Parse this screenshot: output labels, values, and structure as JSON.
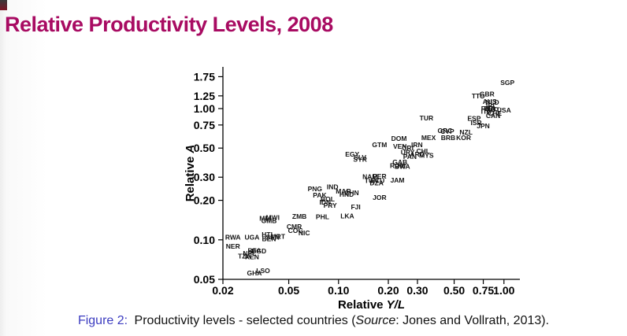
{
  "slide": {
    "title": "Relative Productivity Levels, 2008",
    "title_color": "#a80b62",
    "background_color": "#ffffff",
    "corner_accent_color": "#7a1525"
  },
  "caption": {
    "label": "Figure 2:",
    "label_color": "#3c3cc0",
    "text_before_source": " Productivity levels - selected countries (",
    "source_word": "Source",
    "text_after_source": ": Jones and Vollrath, 2013)."
  },
  "chart_data": {
    "type": "scatter",
    "marker": "country-code-text",
    "title": "",
    "xlabel": "Relative Y/L",
    "xlabel_prefix": "Relative ",
    "xlabel_var": "Y/L",
    "ylabel": "Relative A",
    "ylabel_prefix": "Relative ",
    "ylabel_var": "A",
    "x_scale": "log",
    "y_scale": "log",
    "xlim": [
      0.018,
      1.35
    ],
    "ylim": [
      0.045,
      1.9
    ],
    "grid": false,
    "legend": "none",
    "x_ticks": [
      0.02,
      0.05,
      0.1,
      0.2,
      0.3,
      0.5,
      0.75,
      1.0
    ],
    "x_tick_labels": [
      "0.02",
      "0.05",
      "0.10",
      "0.20",
      "0.30",
      "0.50",
      "0.75",
      "1.00"
    ],
    "y_ticks": [
      0.05,
      0.1,
      0.2,
      0.3,
      0.5,
      0.75,
      1.0,
      1.25,
      1.75
    ],
    "y_tick_labels": [
      "0.05",
      "0.10",
      "0.20",
      "0.30",
      "0.50",
      "0.75",
      "1.00",
      "1.25",
      "1.75"
    ],
    "points": [
      {
        "label": "RWA",
        "x": 0.023,
        "y": 0.105
      },
      {
        "label": "NER",
        "x": 0.023,
        "y": 0.089
      },
      {
        "label": "UGA",
        "x": 0.03,
        "y": 0.105
      },
      {
        "label": "TZA",
        "x": 0.027,
        "y": 0.075
      },
      {
        "label": "KEN",
        "x": 0.03,
        "y": 0.074
      },
      {
        "label": "NPL",
        "x": 0.029,
        "y": 0.079
      },
      {
        "label": "BFA",
        "x": 0.031,
        "y": 0.083
      },
      {
        "label": "BGD",
        "x": 0.033,
        "y": 0.082
      },
      {
        "label": "GHA",
        "x": 0.031,
        "y": 0.056
      },
      {
        "label": "LSO",
        "x": 0.035,
        "y": 0.058
      },
      {
        "label": "HTI",
        "x": 0.037,
        "y": 0.11
      },
      {
        "label": "BEN",
        "x": 0.038,
        "y": 0.102
      },
      {
        "label": "SEN",
        "x": 0.04,
        "y": 0.105
      },
      {
        "label": "MRT",
        "x": 0.043,
        "y": 0.106
      },
      {
        "label": "GMB",
        "x": 0.038,
        "y": 0.14
      },
      {
        "label": "MLI",
        "x": 0.036,
        "y": 0.146
      },
      {
        "label": "MWI",
        "x": 0.04,
        "y": 0.148
      },
      {
        "label": "CMR",
        "x": 0.054,
        "y": 0.126
      },
      {
        "label": "COG",
        "x": 0.055,
        "y": 0.118
      },
      {
        "label": "NIC",
        "x": 0.062,
        "y": 0.113
      },
      {
        "label": "ZMB",
        "x": 0.058,
        "y": 0.151
      },
      {
        "label": "PHL",
        "x": 0.08,
        "y": 0.15
      },
      {
        "label": "LKA",
        "x": 0.113,
        "y": 0.152
      },
      {
        "label": "FJI",
        "x": 0.127,
        "y": 0.178
      },
      {
        "label": "PRY",
        "x": 0.089,
        "y": 0.183
      },
      {
        "label": "IDN",
        "x": 0.083,
        "y": 0.194
      },
      {
        "label": "BOL",
        "x": 0.086,
        "y": 0.205
      },
      {
        "label": "PAK",
        "x": 0.077,
        "y": 0.219
      },
      {
        "label": "PNG",
        "x": 0.072,
        "y": 0.245
      },
      {
        "label": "IND",
        "x": 0.092,
        "y": 0.254
      },
      {
        "label": "MAR",
        "x": 0.107,
        "y": 0.234
      },
      {
        "label": "HND",
        "x": 0.112,
        "y": 0.222
      },
      {
        "label": "CHN",
        "x": 0.12,
        "y": 0.228
      },
      {
        "label": "JOR",
        "x": 0.177,
        "y": 0.21
      },
      {
        "label": "DZA",
        "x": 0.17,
        "y": 0.271
      },
      {
        "label": "ECU",
        "x": 0.172,
        "y": 0.282
      },
      {
        "label": "TUN",
        "x": 0.158,
        "y": 0.283
      },
      {
        "label": "NAM",
        "x": 0.155,
        "y": 0.303
      },
      {
        "label": "PER",
        "x": 0.177,
        "y": 0.305
      },
      {
        "label": "JAM",
        "x": 0.227,
        "y": 0.285
      },
      {
        "label": "SYR",
        "x": 0.135,
        "y": 0.41
      },
      {
        "label": "EGY",
        "x": 0.121,
        "y": 0.45
      },
      {
        "label": "SLV",
        "x": 0.135,
        "y": 0.425
      },
      {
        "label": "GTM",
        "x": 0.177,
        "y": 0.53
      },
      {
        "label": "VEN",
        "x": 0.235,
        "y": 0.515
      },
      {
        "label": "CRI",
        "x": 0.262,
        "y": 0.5
      },
      {
        "label": "IRN",
        "x": 0.298,
        "y": 0.53
      },
      {
        "label": "URY",
        "x": 0.262,
        "y": 0.465
      },
      {
        "label": "CHL",
        "x": 0.325,
        "y": 0.475
      },
      {
        "label": "PAN",
        "x": 0.27,
        "y": 0.43
      },
      {
        "label": "ARG",
        "x": 0.3,
        "y": 0.45
      },
      {
        "label": "MYS",
        "x": 0.34,
        "y": 0.44
      },
      {
        "label": "GAB",
        "x": 0.235,
        "y": 0.39
      },
      {
        "label": "ROM",
        "x": 0.228,
        "y": 0.368
      },
      {
        "label": "BWA",
        "x": 0.243,
        "y": 0.362
      },
      {
        "label": "DOM",
        "x": 0.232,
        "y": 0.59
      },
      {
        "label": "MEX",
        "x": 0.35,
        "y": 0.6
      },
      {
        "label": "BRB",
        "x": 0.46,
        "y": 0.6
      },
      {
        "label": "KOR",
        "x": 0.57,
        "y": 0.6
      },
      {
        "label": "NZL",
        "x": 0.59,
        "y": 0.66
      },
      {
        "label": "GRC",
        "x": 0.44,
        "y": 0.68
      },
      {
        "label": "CYP",
        "x": 0.455,
        "y": 0.67
      },
      {
        "label": "TUR",
        "x": 0.34,
        "y": 0.85
      },
      {
        "label": "ESP",
        "x": 0.66,
        "y": 0.84
      },
      {
        "label": "ISR",
        "x": 0.68,
        "y": 0.78
      },
      {
        "label": "JPN",
        "x": 0.75,
        "y": 0.74
      },
      {
        "label": "TTO",
        "x": 0.7,
        "y": 1.25
      },
      {
        "label": "GBR",
        "x": 0.79,
        "y": 1.29
      },
      {
        "label": "AUS",
        "x": 0.82,
        "y": 1.13
      },
      {
        "label": "NLD",
        "x": 0.85,
        "y": 1.12
      },
      {
        "label": "IRL",
        "x": 0.84,
        "y": 1.06
      },
      {
        "label": "FRA",
        "x": 0.8,
        "y": 1.0
      },
      {
        "label": "BEL",
        "x": 0.83,
        "y": 1.0
      },
      {
        "label": "ITA",
        "x": 0.78,
        "y": 0.95
      },
      {
        "label": "AUT",
        "x": 0.86,
        "y": 0.98
      },
      {
        "label": "CHE",
        "x": 0.88,
        "y": 0.92
      },
      {
        "label": "CAN",
        "x": 0.86,
        "y": 0.88
      },
      {
        "label": "USA",
        "x": 1.0,
        "y": 0.97
      },
      {
        "label": "SGP",
        "x": 1.05,
        "y": 1.58
      }
    ]
  }
}
